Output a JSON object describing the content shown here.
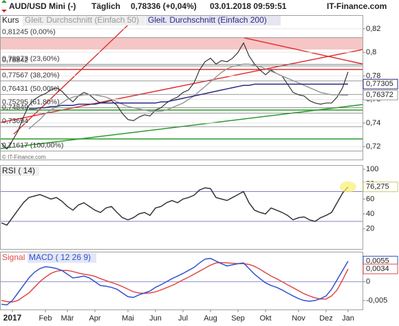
{
  "header": {
    "symbol": "AUD/USD Mini (-)",
    "interval": "Täglich",
    "price": "0,78336 (+0,04%)",
    "datetime": "03.01.2018 09:59:51",
    "source": "IT-Finance.com"
  },
  "chart_data": [
    {
      "type": "line",
      "watermark": "© IT-Finance.com",
      "grid": true,
      "ylim": [
        0.709,
        0.831
      ],
      "yticks": [
        {
          "value": 0.72,
          "label": "0,72"
        },
        {
          "value": 0.74,
          "label": "0,74"
        },
        {
          "value": 0.76,
          "label": "0,76"
        },
        {
          "value": 0.78,
          "label": "0,78"
        },
        {
          "value": 0.8,
          "label": "0,8"
        },
        {
          "value": 0.82,
          "label": "0,82"
        }
      ],
      "series": [
        {
          "name": "Kurs",
          "color": "#333333",
          "values": [
            0.723,
            0.718,
            0.725,
            0.733,
            0.745,
            0.755,
            0.76,
            0.763,
            0.765,
            0.768,
            0.77,
            0.767,
            0.762,
            0.758,
            0.763,
            0.766,
            0.764,
            0.76,
            0.757,
            0.758,
            0.759,
            0.755,
            0.748,
            0.743,
            0.742,
            0.745,
            0.747,
            0.746,
            0.751,
            0.753,
            0.757,
            0.76,
            0.762,
            0.766,
            0.768,
            0.774,
            0.785,
            0.792,
            0.795,
            0.79,
            0.793,
            0.792,
            0.795,
            0.8,
            0.808,
            0.797,
            0.79,
            0.785,
            0.781,
            0.785,
            0.782,
            0.78,
            0.773,
            0.766,
            0.764,
            0.763,
            0.759,
            0.757,
            0.756,
            0.757,
            0.757,
            0.762,
            0.77,
            0.7834
          ]
        },
        {
          "name": "Gleit. Durchschnitt (Einfach 50)",
          "color": "#999999",
          "values": [
            null,
            null,
            null,
            null,
            null,
            0.735,
            0.739,
            0.743,
            0.748,
            0.751,
            0.754,
            0.757,
            0.76,
            0.762,
            0.763,
            0.764,
            0.764,
            0.764,
            0.763,
            0.762,
            0.76,
            0.758,
            0.756,
            0.754,
            0.753,
            0.752,
            0.751,
            0.75,
            0.75,
            0.75,
            0.751,
            0.753,
            0.755,
            0.757,
            0.76,
            0.763,
            0.767,
            0.771,
            0.775,
            0.779,
            0.783,
            0.786,
            0.788,
            0.789,
            0.79,
            0.79,
            0.789,
            0.788,
            0.786,
            0.784,
            0.782,
            0.78,
            0.778,
            0.776,
            0.774,
            0.772,
            0.77,
            0.768,
            0.766,
            0.765,
            0.764,
            0.764,
            0.7637,
            0.7637
          ]
        },
        {
          "name": "Gleit. Durchschnitt (Einfach 200)",
          "color": "#2a2a80",
          "values": [
            null,
            null,
            null,
            null,
            null,
            0.752,
            0.752,
            0.753,
            0.753,
            0.754,
            0.754,
            0.755,
            0.755,
            0.755,
            0.756,
            0.756,
            0.756,
            0.756,
            0.757,
            0.757,
            0.757,
            0.757,
            0.757,
            0.757,
            0.757,
            0.757,
            0.757,
            0.757,
            0.757,
            0.758,
            0.758,
            0.759,
            0.76,
            0.761,
            0.762,
            0.763,
            0.764,
            0.765,
            0.766,
            0.767,
            0.768,
            0.769,
            0.77,
            0.771,
            0.772,
            0.772,
            0.773,
            0.773,
            0.773,
            0.773,
            0.773,
            0.773,
            0.773,
            0.773,
            0.773,
            0.773,
            0.773,
            0.773,
            0.773,
            0.773,
            0.773,
            0.773,
            0.773,
            0.7731
          ]
        }
      ],
      "levels": [
        {
          "value": 0.81245,
          "label": "0,81245 (0,00%)"
        },
        {
          "value": 0.78973,
          "label": "0,78973 (23,60%)"
        },
        {
          "value": 0.78842,
          "label": "0,78842"
        },
        {
          "value": 0.77567,
          "label": "0,77567 (38,20%)"
        },
        {
          "value": 0.76431,
          "label": "0,76431 (50,00%)"
        },
        {
          "value": 0.75295,
          "label": "0,75295 (61,80%)"
        },
        {
          "value": 0.74849,
          "label": "0,74849"
        },
        {
          "value": 0.73694,
          "label": "0,73694"
        },
        {
          "value": 0.71617,
          "label": "0,71617 (100,00%)"
        }
      ],
      "last_labels": [
        {
          "value": 0.77305,
          "label": "0,77305",
          "color": "#2a2a80"
        },
        {
          "value": 0.76372,
          "label": "0,76372",
          "color": "#999999"
        }
      ]
    },
    {
      "type": "line",
      "title": "RSI ( 14)",
      "ylim": [
        -7,
        104.6
      ],
      "yticks": [
        20,
        40,
        60,
        80,
        100
      ],
      "levels": [
        70,
        30
      ],
      "series": [
        {
          "color": "#333333",
          "values": [
            28,
            25,
            35,
            45,
            55,
            62,
            64,
            66,
            63,
            60,
            62,
            57,
            50,
            45,
            52,
            55,
            50,
            45,
            42,
            48,
            50,
            42,
            35,
            32,
            35,
            40,
            42,
            38,
            48,
            50,
            55,
            58,
            55,
            60,
            62,
            65,
            72,
            75,
            74,
            62,
            60,
            58,
            62,
            66,
            70,
            55,
            45,
            42,
            40,
            48,
            45,
            42,
            38,
            32,
            35,
            36,
            32,
            30,
            35,
            38,
            42,
            55,
            68,
            76.275
          ]
        }
      ],
      "last_labels": [
        {
          "value": 76.275,
          "label": "76,275",
          "color": "#cccc66"
        }
      ]
    },
    {
      "type": "line",
      "ylim": [
        -0.0074,
        0.0078
      ],
      "yticks": [
        {
          "value": -0.005,
          "label": "-0,005"
        },
        0,
        {
          "value": 0.005,
          "label": "0,005"
        }
      ],
      "series": [
        {
          "name": "Signal",
          "color": "#e04848",
          "values": [
            -0.005,
            -0.0053,
            -0.0054,
            -0.005,
            -0.004,
            -0.003,
            -0.0015,
            0,
            0.0012,
            0.0022,
            0.0028,
            0.003,
            0.003,
            0.0027,
            0.0023,
            0.002,
            0.0018,
            0.0014,
            0.0008,
            0.0003,
            -0.0002,
            -0.0007,
            -0.0013,
            -0.002,
            -0.0027,
            -0.003,
            -0.0031,
            -0.003,
            -0.0027,
            -0.0022,
            -0.0016,
            -0.001,
            -0.0003,
            0.0005,
            0.0012,
            0.002,
            0.0028,
            0.0036,
            0.0044,
            0.005,
            0.0051,
            0.005,
            0.0049,
            0.0048,
            0.0048,
            0.0046,
            0.0041,
            0.0033,
            0.0024,
            0.0015,
            0.0008,
            0,
            -0.0008,
            -0.0016,
            -0.0024,
            -0.0032,
            -0.0038,
            -0.0043,
            -0.0046,
            -0.0046,
            -0.0038,
            -0.0022,
            0.0005,
            0.0034
          ]
        },
        {
          "name": "MACD ( 12 26 9)",
          "color": "#3050d0",
          "values": [
            -0.006,
            -0.0062,
            -0.005,
            -0.003,
            -0.001,
            0.001,
            0.0025,
            0.0035,
            0.004,
            0.0038,
            0.0035,
            0.003,
            0.002,
            0.001,
            0.0012,
            0.0015,
            0.001,
            0,
            -0.001,
            -0.0012,
            -0.0015,
            -0.002,
            -0.003,
            -0.004,
            -0.0042,
            -0.0035,
            -0.003,
            -0.0025,
            -0.0015,
            -0.0008,
            0,
            0.0008,
            0.0015,
            0.0022,
            0.003,
            0.0038,
            0.005,
            0.006,
            0.0062,
            0.0055,
            0.0048,
            0.0042,
            0.0045,
            0.0048,
            0.005,
            0.0035,
            0.002,
            0.0008,
            -0.0003,
            -0.001,
            -0.0015,
            -0.0022,
            -0.003,
            -0.0038,
            -0.0045,
            -0.005,
            -0.0052,
            -0.005,
            -0.0045,
            -0.0038,
            -0.002,
            0.0005,
            0.003,
            0.0055
          ]
        }
      ],
      "last_labels": [
        {
          "value": 0.0055,
          "label": "0,0055",
          "color": "#3050d0"
        },
        {
          "value": 0.0034,
          "label": "0,0034",
          "color": "#e04848"
        }
      ],
      "categories": [
        null,
        null,
        "2017",
        null,
        null,
        null,
        null,
        null,
        "Feb",
        null,
        null,
        null,
        "Mär",
        null,
        null,
        null,
        null,
        "Apr",
        null,
        null,
        null,
        null,
        null,
        "Mai",
        null,
        null,
        null,
        null,
        "Jun",
        null,
        null,
        null,
        null,
        "Jul",
        null,
        null,
        null,
        null,
        "Aug",
        null,
        null,
        null,
        null,
        "Sep",
        null,
        null,
        null,
        null,
        "Okt",
        null,
        null,
        null,
        null,
        null,
        "Nov",
        null,
        null,
        null,
        null,
        "Dez",
        null,
        null,
        null,
        "Jan"
      ]
    }
  ]
}
